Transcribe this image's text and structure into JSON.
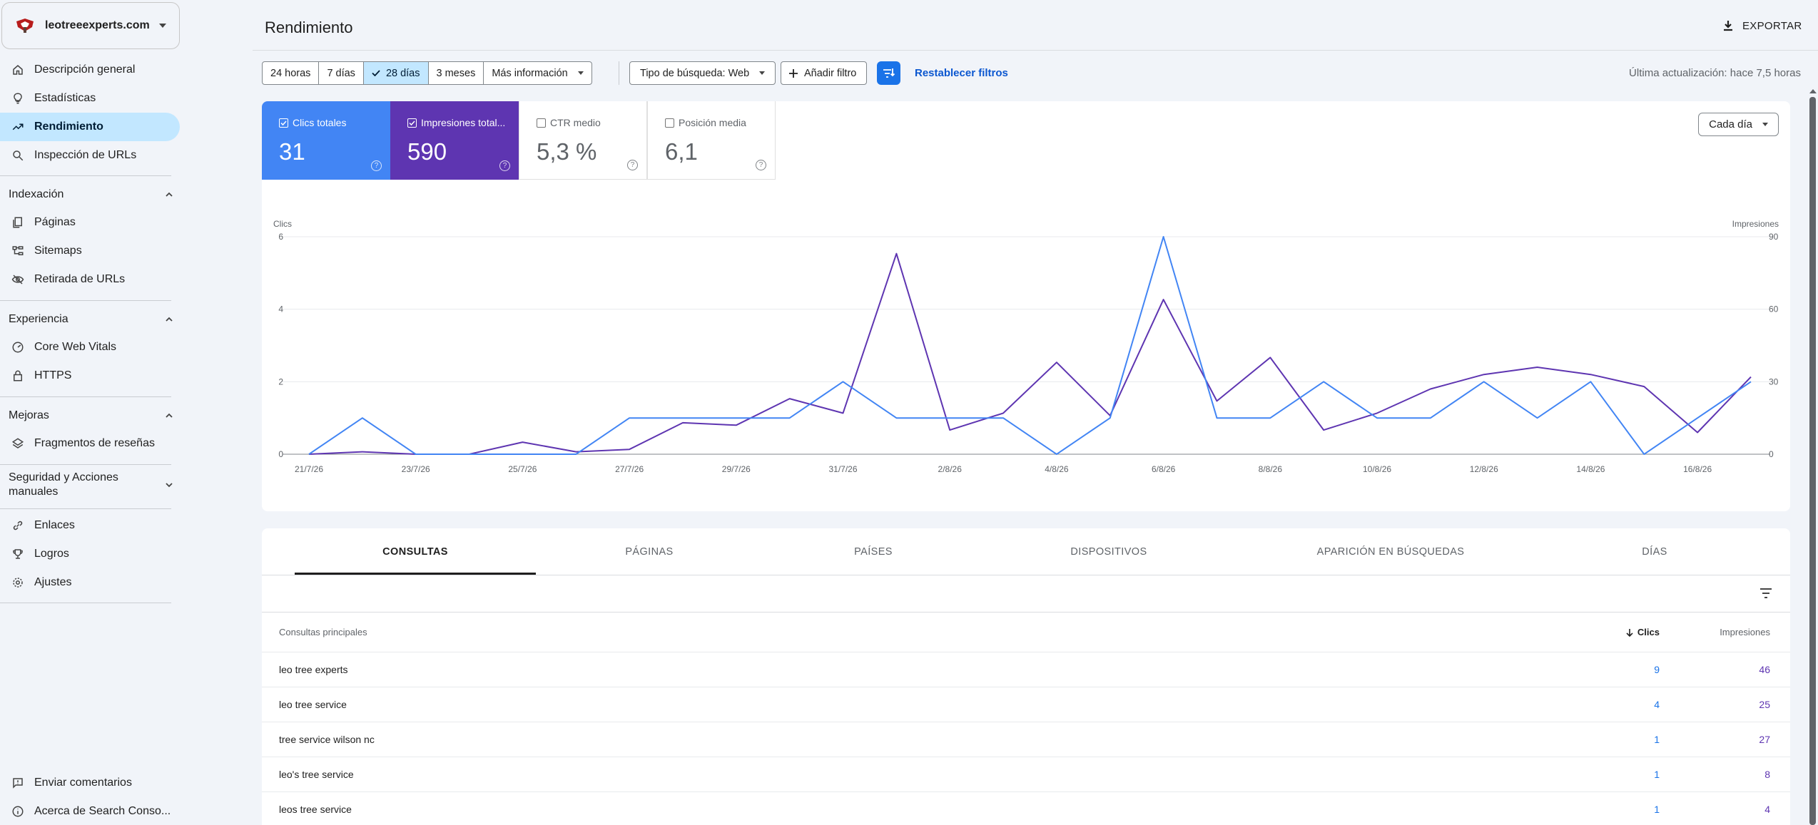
{
  "property": {
    "name": "leotreeexperts.com"
  },
  "nav": {
    "top": [
      {
        "label": "Descripción general",
        "icon": "home-icon"
      },
      {
        "label": "Estadísticas",
        "icon": "lightbulb-icon"
      },
      {
        "label": "Rendimiento",
        "icon": "trending-up-icon",
        "active": true
      },
      {
        "label": "Inspección de URLs",
        "icon": "search-icon"
      }
    ],
    "sections": [
      {
        "title": "Indexación",
        "items": [
          {
            "label": "Páginas",
            "icon": "pages-icon"
          },
          {
            "label": "Sitemaps",
            "icon": "sitemap-icon"
          },
          {
            "label": "Retirada de URLs",
            "icon": "eye-off-icon"
          }
        ]
      },
      {
        "title": "Experiencia",
        "items": [
          {
            "label": "Core Web Vitals",
            "icon": "gauge-icon"
          },
          {
            "label": "HTTPS",
            "icon": "lock-icon"
          }
        ]
      },
      {
        "title": "Mejoras",
        "items": [
          {
            "label": "Fragmentos de reseñas",
            "icon": "layers-icon"
          }
        ]
      },
      {
        "title": "Seguridad y Acciones manuales",
        "title_line1": "Seguridad y Acciones",
        "title_line2": "manuales",
        "items": []
      }
    ],
    "bottom_group": [
      {
        "label": "Enlaces",
        "icon": "link-icon"
      },
      {
        "label": "Logros",
        "icon": "trophy-icon"
      },
      {
        "label": "Ajustes",
        "icon": "gear-icon"
      }
    ],
    "footer": [
      {
        "label": "Enviar comentarios",
        "icon": "feedback-icon"
      },
      {
        "label": "Acerca de Search Conso...",
        "icon": "info-icon"
      }
    ]
  },
  "header": {
    "title": "Rendimiento",
    "export_label": "EXPORTAR"
  },
  "filters": {
    "date_options": [
      "24 horas",
      "7 días",
      "28 días",
      "3 meses",
      "Más información"
    ],
    "selected_date": "28 días",
    "search_type": "Tipo de búsqueda: Web",
    "add_filter": "Añadir filtro",
    "reset": "Restablecer filtros",
    "last_update": "Última actualización: hace 7,5 horas"
  },
  "metrics": [
    {
      "label": "Clics totales",
      "value": "31",
      "checked": true,
      "color": "#4285f4"
    },
    {
      "label": "Impresiones total...",
      "value": "590",
      "checked": true,
      "color": "#5e35b1"
    },
    {
      "label": "CTR medio",
      "value": "5,3 %",
      "checked": false
    },
    {
      "label": "Posición media",
      "value": "6,1",
      "checked": false
    }
  ],
  "granularity": "Cada día",
  "chart_data": {
    "type": "line",
    "x": [
      "21/7/26",
      "22/7/26",
      "23/7/26",
      "24/7/26",
      "25/7/26",
      "26/7/26",
      "27/7/26",
      "28/7/26",
      "29/7/26",
      "30/7/26",
      "31/7/26",
      "1/8/26",
      "2/8/26",
      "3/8/26",
      "4/8/26",
      "5/8/26",
      "6/8/26",
      "7/8/26",
      "8/8/26",
      "9/8/26",
      "10/8/26",
      "11/8/26",
      "12/8/26",
      "13/8/26",
      "14/8/26",
      "15/8/26",
      "16/8/26",
      "17/8/26"
    ],
    "x_tick_labels": [
      "21/7/26",
      "23/7/26",
      "25/7/26",
      "27/7/26",
      "29/7/26",
      "31/7/26",
      "2/8/26",
      "4/8/26",
      "6/8/26",
      "8/8/26",
      "10/8/26",
      "12/8/26",
      "14/8/26",
      "16/8/26"
    ],
    "y_left": {
      "label": "Clics",
      "ylim": [
        0,
        6
      ],
      "ticks": [
        0,
        2,
        4,
        6
      ]
    },
    "y_right": {
      "label": "Impresiones",
      "ylim": [
        0,
        90
      ],
      "ticks": [
        0,
        30,
        60,
        90
      ]
    },
    "series": [
      {
        "name": "Clics",
        "axis": "left",
        "color": "#4285f4",
        "values": [
          0,
          1,
          0,
          0,
          0,
          0,
          1,
          1,
          1,
          1,
          2,
          1,
          1,
          1,
          0,
          1,
          6,
          1,
          1,
          2,
          1,
          1,
          2,
          1,
          2,
          0,
          1,
          2
        ]
      },
      {
        "name": "Impresiones",
        "axis": "right",
        "color": "#5e35b1",
        "values": [
          0,
          1,
          0,
          0,
          5,
          1,
          2,
          13,
          12,
          23,
          17,
          83,
          10,
          17,
          38,
          16,
          64,
          22,
          40,
          10,
          17,
          27,
          33,
          36,
          33,
          28,
          9,
          32
        ]
      }
    ],
    "grid": true
  },
  "table": {
    "tabs": [
      "CONSULTAS",
      "PÁGINAS",
      "PAÍSES",
      "DISPOSITIVOS",
      "APARICIÓN EN BÚSQUEDAS",
      "DÍAS"
    ],
    "active_tab": "CONSULTAS",
    "headers": [
      "Consultas principales",
      "Clics",
      "Impresiones"
    ],
    "rows": [
      {
        "query": "leo tree experts",
        "clicks": "9",
        "impressions": "46"
      },
      {
        "query": "leo tree service",
        "clicks": "4",
        "impressions": "25"
      },
      {
        "query": "tree service wilson nc",
        "clicks": "1",
        "impressions": "27"
      },
      {
        "query": "leo's tree service",
        "clicks": "1",
        "impressions": "8"
      },
      {
        "query": "leos tree service",
        "clicks": "1",
        "impressions": "4"
      }
    ]
  }
}
